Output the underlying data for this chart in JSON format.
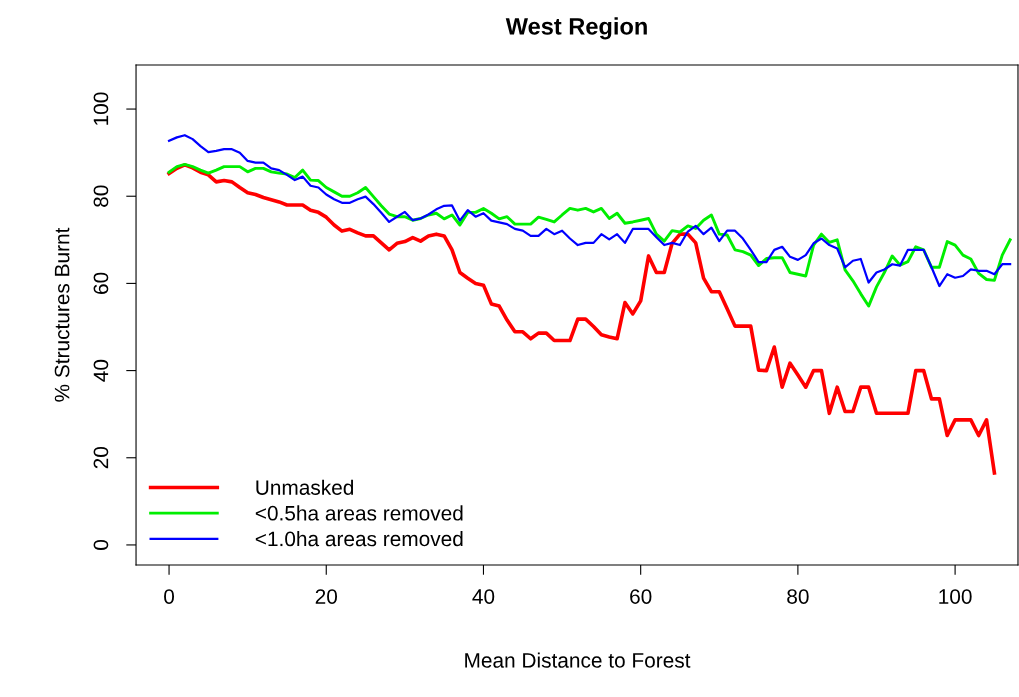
{
  "chart_data": {
    "type": "line",
    "title": "West Region",
    "xlabel": "Mean Distance to Forest",
    "ylabel": "% Structures Burnt",
    "x": [
      0,
      1,
      2,
      3,
      4,
      5,
      6,
      7,
      8,
      9,
      10,
      11,
      12,
      13,
      14,
      15,
      16,
      17,
      18,
      19,
      20,
      21,
      22,
      23,
      24,
      25,
      26,
      27,
      28,
      29,
      30,
      31,
      32,
      33,
      34,
      35,
      36,
      37,
      38,
      39,
      40,
      41,
      42,
      43,
      44,
      45,
      46,
      47,
      48,
      49,
      50,
      51,
      52,
      53,
      54,
      55,
      56,
      57,
      58,
      59,
      60,
      61,
      62,
      63,
      64,
      65,
      66,
      67,
      68,
      69,
      70,
      71,
      72,
      73,
      74,
      75,
      76,
      77,
      78,
      79,
      80,
      81,
      82,
      83,
      84,
      85,
      86,
      87,
      88,
      89,
      90,
      91,
      92,
      93,
      94,
      95,
      96,
      97,
      98,
      99,
      100,
      101,
      102,
      103,
      104,
      105,
      106,
      107
    ],
    "series": [
      {
        "name": "Unmasked",
        "color": "#ff0000",
        "values": [
          85.2,
          86.4,
          87.2,
          86.5,
          85.5,
          84.9,
          83.3,
          83.6,
          83.3,
          82.0,
          80.8,
          80.4,
          79.7,
          79.2,
          78.7,
          78.0,
          78.0,
          78.0,
          76.8,
          76.3,
          75.2,
          73.4,
          72.0,
          72.4,
          71.6,
          70.9,
          70.9,
          69.3,
          67.7,
          69.2,
          69.6,
          70.5,
          69.7,
          70.9,
          71.3,
          70.9,
          67.7,
          62.5,
          61.2,
          60.0,
          59.6,
          55.3,
          54.8,
          51.6,
          48.9,
          48.9,
          47.3,
          48.6,
          48.6,
          46.9,
          46.9,
          46.9,
          51.8,
          51.8,
          50.1,
          48.2,
          47.7,
          47.3,
          55.6,
          53.0,
          56.0,
          66.3,
          62.5,
          62.5,
          69.2,
          71.3,
          71.3,
          69.3,
          61.2,
          58.1,
          58.1,
          54.2,
          50.2,
          50.2,
          50.2,
          40.1,
          40.0,
          45.4,
          36.2,
          41.7,
          39.0,
          36.2,
          40.0,
          40.0,
          30.2,
          36.2,
          30.6,
          30.6,
          36.2,
          36.2,
          30.2,
          30.2,
          30.2,
          30.2,
          30.2,
          40.0,
          40.0,
          33.5,
          33.5,
          25.1,
          28.7,
          28.7,
          28.7,
          25.1,
          28.7,
          16.5,
          null,
          null
        ]
      },
      {
        "name": "<0.5ha areas removed",
        "color": "#00ee00",
        "values": [
          85.5,
          86.8,
          87.3,
          86.8,
          86.0,
          85.3,
          86.0,
          86.8,
          86.8,
          86.8,
          85.6,
          86.4,
          86.4,
          85.6,
          85.3,
          85.1,
          84.3,
          86.0,
          83.7,
          83.6,
          82.0,
          81.0,
          80.0,
          80.0,
          80.8,
          82.0,
          79.9,
          77.8,
          75.9,
          75.3,
          75.3,
          74.5,
          74.9,
          75.7,
          76.1,
          74.8,
          75.7,
          73.4,
          76.3,
          76.3,
          77.2,
          76.1,
          74.8,
          75.3,
          73.6,
          73.6,
          73.6,
          75.2,
          74.7,
          74.1,
          75.7,
          77.2,
          76.8,
          77.2,
          76.4,
          77.2,
          74.9,
          76.1,
          73.8,
          74.1,
          74.5,
          74.9,
          71.3,
          69.7,
          72.1,
          71.8,
          73.2,
          72.6,
          74.5,
          75.7,
          71.3,
          71.1,
          67.7,
          67.3,
          66.5,
          64.1,
          65.7,
          65.9,
          65.9,
          62.5,
          62.1,
          61.7,
          68.8,
          71.3,
          69.4,
          70.0,
          63.1,
          60.6,
          57.6,
          54.8,
          59.2,
          62.5,
          66.3,
          64.2,
          65.0,
          68.4,
          67.7,
          63.7,
          63.7,
          69.6,
          68.8,
          66.5,
          65.6,
          62.3,
          60.9,
          60.7,
          66.5,
          70.0
        ]
      },
      {
        "name": "<1.0ha areas removed",
        "color": "#0000ff",
        "values": [
          92.7,
          93.5,
          94.0,
          93.1,
          91.5,
          90.1,
          90.4,
          90.8,
          90.8,
          90.0,
          88.1,
          87.7,
          87.7,
          86.4,
          86.0,
          84.9,
          83.7,
          84.5,
          82.4,
          82.0,
          80.4,
          79.3,
          78.5,
          78.5,
          79.3,
          79.9,
          78.2,
          76.2,
          74.1,
          75.3,
          76.4,
          74.5,
          74.9,
          75.8,
          77.0,
          77.8,
          77.9,
          74.4,
          76.8,
          75.3,
          76.1,
          74.4,
          74.0,
          73.6,
          72.5,
          72.1,
          70.9,
          70.9,
          72.5,
          71.3,
          72.1,
          70.3,
          68.8,
          69.3,
          69.3,
          71.3,
          70.1,
          71.3,
          69.3,
          72.5,
          72.5,
          72.5,
          70.6,
          68.8,
          69.3,
          68.8,
          71.9,
          73.2,
          71.3,
          72.8,
          69.7,
          72.1,
          72.1,
          70.3,
          67.7,
          64.9,
          64.9,
          67.7,
          68.4,
          66.1,
          65.4,
          66.5,
          69.2,
          70.3,
          68.8,
          68.0,
          63.7,
          65.2,
          65.6,
          60.2,
          62.5,
          63.2,
          64.4,
          64.1,
          67.7,
          67.7,
          67.7,
          63.7,
          59.4,
          62.1,
          61.3,
          61.7,
          63.2,
          62.9,
          62.9,
          62.1,
          64.4,
          64.4
        ]
      }
    ],
    "xlim": [
      -4.2,
      108
    ],
    "ylim": [
      -4.6,
      110.1
    ],
    "xticks": [
      0,
      20,
      40,
      60,
      80,
      100
    ],
    "yticks": [
      0,
      20,
      40,
      60,
      80,
      100
    ],
    "grid": false,
    "legend": "bottom left",
    "marker": "none",
    "line_style": "solid"
  }
}
